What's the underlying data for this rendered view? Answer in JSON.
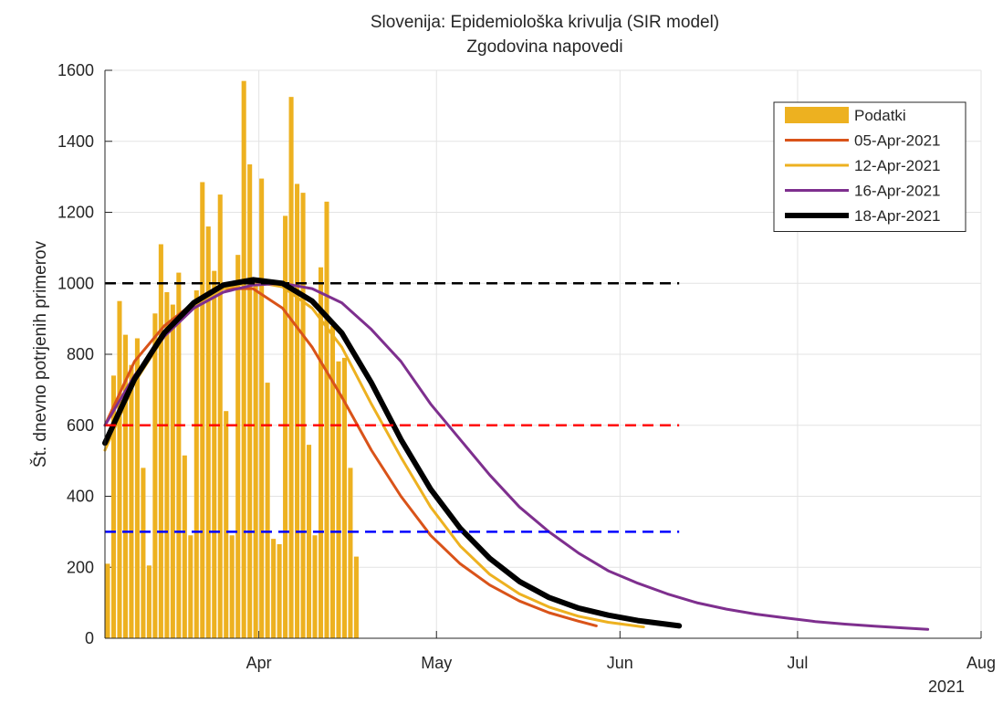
{
  "chart_data": {
    "type": "bar-line",
    "title": "Slovenija: Epidemiološka krivulja (SIR model)",
    "subtitle": "Zgodovina napovedi",
    "y_label": "Št. dnevno potrjenih primerov",
    "x_year_label": "2021",
    "xlim": [
      65,
      213
    ],
    "xticks": [
      {
        "value": 91,
        "label": "Apr"
      },
      {
        "value": 121,
        "label": "May"
      },
      {
        "value": 152,
        "label": "Jun"
      },
      {
        "value": 182,
        "label": "Jul"
      },
      {
        "value": 213,
        "label": "Aug"
      }
    ],
    "ylim": [
      0,
      1600
    ],
    "yticks": [
      0,
      200,
      400,
      600,
      800,
      1000,
      1200,
      1400,
      1600
    ],
    "grid": true,
    "legend_position": "top-right",
    "bars": {
      "name": "Podatki",
      "color": "#edb120",
      "x": [
        65,
        66,
        67,
        68,
        69,
        70,
        71,
        72,
        73,
        74,
        75,
        76,
        77,
        78,
        79,
        80,
        81,
        82,
        83,
        84,
        85,
        86,
        87,
        88,
        89,
        90,
        91,
        92,
        93,
        94,
        95,
        96,
        97,
        98,
        99,
        100,
        101,
        102,
        103,
        104,
        105,
        106,
        107
      ],
      "values": [
        210,
        740,
        950,
        855,
        770,
        845,
        480,
        205,
        915,
        1110,
        975,
        940,
        1030,
        515,
        290,
        980,
        1285,
        1160,
        1035,
        1250,
        640,
        290,
        1080,
        1570,
        1335,
        1010,
        1295,
        720,
        280,
        265,
        1190,
        1525,
        1280,
        1255,
        545,
        290,
        1045,
        1230,
        880,
        780,
        790,
        480,
        230
      ]
    },
    "series": [
      {
        "name": "05-Apr-2021",
        "color": "#d95319",
        "line_width": 3,
        "x": [
          65,
          70,
          75,
          80,
          85,
          90,
          95,
          100,
          105,
          110,
          115,
          120,
          125,
          130,
          135,
          140,
          145,
          148
        ],
        "values": [
          600,
          780,
          880,
          945,
          985,
          985,
          930,
          820,
          680,
          530,
          400,
          290,
          210,
          150,
          105,
          72,
          48,
          35
        ]
      },
      {
        "name": "12-Apr-2021",
        "color": "#edb120",
        "line_width": 3,
        "x": [
          65,
          70,
          75,
          80,
          85,
          90,
          95,
          100,
          105,
          110,
          115,
          120,
          125,
          130,
          135,
          140,
          145,
          150,
          156
        ],
        "values": [
          530,
          720,
          850,
          935,
          985,
          1005,
          990,
          930,
          820,
          660,
          510,
          370,
          260,
          180,
          125,
          88,
          62,
          45,
          32
        ]
      },
      {
        "name": "16-Apr-2021",
        "color": "#7e2f8e",
        "line_width": 3,
        "x": [
          65,
          70,
          75,
          80,
          85,
          90,
          95,
          100,
          105,
          110,
          115,
          120,
          125,
          130,
          135,
          140,
          145,
          150,
          155,
          160,
          165,
          170,
          175,
          180,
          185,
          190,
          195,
          200,
          204
        ],
        "values": [
          600,
          740,
          850,
          930,
          975,
          995,
          1000,
          985,
          945,
          870,
          780,
          660,
          560,
          460,
          370,
          300,
          240,
          190,
          155,
          125,
          100,
          82,
          68,
          57,
          47,
          40,
          34,
          29,
          25
        ]
      },
      {
        "name": "18-Apr-2021",
        "color": "#000000",
        "line_width": 6,
        "x": [
          65,
          70,
          75,
          80,
          85,
          90,
          95,
          100,
          105,
          110,
          115,
          120,
          125,
          130,
          135,
          140,
          145,
          150,
          155,
          162
        ],
        "values": [
          550,
          730,
          860,
          945,
          995,
          1010,
          1000,
          950,
          860,
          720,
          560,
          420,
          310,
          225,
          160,
          115,
          85,
          65,
          50,
          35
        ]
      }
    ],
    "reference_lines": [
      {
        "y": 1000,
        "color": "#000000",
        "x": [
          65,
          162
        ]
      },
      {
        "y": 600,
        "color": "#ff0000",
        "x": [
          65,
          162
        ]
      },
      {
        "y": 300,
        "color": "#0000ff",
        "x": [
          65,
          162
        ]
      }
    ]
  }
}
